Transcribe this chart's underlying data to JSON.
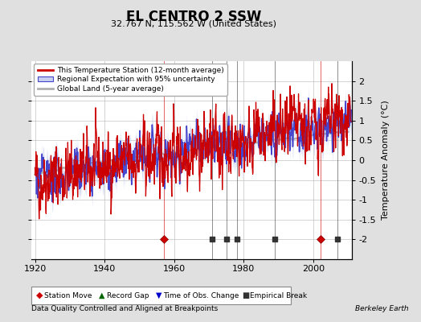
{
  "title": "EL CENTRO 2 SSW",
  "subtitle": "32.767 N, 115.562 W (United States)",
  "xlabel_note": "Data Quality Controlled and Aligned at Breakpoints",
  "credit": "Berkeley Earth",
  "ylabel": "Temperature Anomaly (°C)",
  "xlim": [
    1919,
    2011
  ],
  "ylim": [
    -2.5,
    2.5
  ],
  "yticks": [
    -2,
    -1.5,
    -1,
    -0.5,
    0,
    0.5,
    1,
    1.5,
    2
  ],
  "xticks": [
    1920,
    1940,
    1960,
    1980,
    2000
  ],
  "bg_color": "#e0e0e0",
  "plot_bg_color": "#ffffff",
  "station_move_years": [
    1957,
    2002
  ],
  "empirical_break_years": [
    1971,
    1975,
    1978,
    1989,
    2007
  ],
  "marker_y": -2.0,
  "seed": 42
}
